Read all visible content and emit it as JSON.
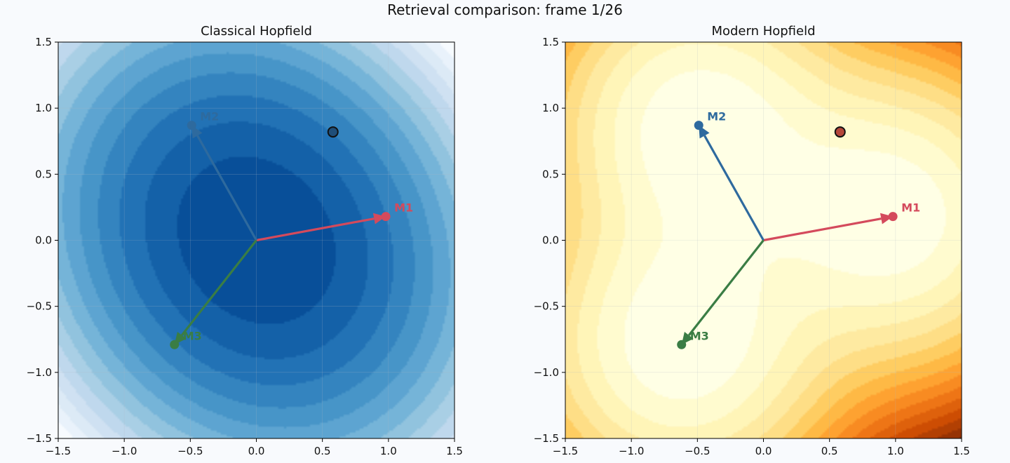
{
  "figure": {
    "title": "Retrieval comparison: frame 1/26",
    "background": "#f8fafd"
  },
  "chart_data": [
    {
      "type": "contour",
      "title": "Classical Hopfield",
      "xlim": [
        -1.5,
        1.5
      ],
      "ylim": [
        -1.5,
        1.5
      ],
      "xticks": [
        "−1.5",
        "−1.0",
        "−0.5",
        "0.0",
        "0.5",
        "1.0",
        "1.5"
      ],
      "yticks": [
        "−1.5",
        "−1.0",
        "−0.5",
        "0.0",
        "0.5",
        "1.0",
        "1.5"
      ],
      "colormap": "Blues",
      "grid": true,
      "energy_model": "quadratic",
      "memories": [
        {
          "label": "M1",
          "x": 0.98,
          "y": 0.18,
          "color": "#d44a5c"
        },
        {
          "label": "M2",
          "x": -0.49,
          "y": 0.87,
          "color": "#2e6a9e"
        },
        {
          "label": "M3",
          "x": -0.62,
          "y": -0.79,
          "color": "#3a7d44"
        }
      ],
      "state": {
        "x": 0.58,
        "y": 0.82,
        "color": "#1f4e79"
      }
    },
    {
      "type": "contour",
      "title": "Modern Hopfield",
      "xlim": [
        -1.5,
        1.5
      ],
      "ylim": [
        -1.5,
        1.5
      ],
      "xticks": [
        "−1.5",
        "−1.0",
        "−0.5",
        "0.0",
        "0.5",
        "1.0",
        "1.5"
      ],
      "yticks": [
        "−1.5",
        "−1.0",
        "−0.5",
        "0.0",
        "0.5",
        "1.0",
        "1.5"
      ],
      "colormap": "YlOrBr",
      "grid": true,
      "energy_model": "log-sum-exp",
      "memories": [
        {
          "label": "M1",
          "x": 0.98,
          "y": 0.18,
          "color": "#d44a5c"
        },
        {
          "label": "M2",
          "x": -0.49,
          "y": 0.87,
          "color": "#2e6a9e"
        },
        {
          "label": "M3",
          "x": -0.62,
          "y": -0.79,
          "color": "#3a7d44"
        }
      ],
      "state": {
        "x": 0.58,
        "y": 0.82,
        "color": "#b5473a"
      }
    }
  ]
}
